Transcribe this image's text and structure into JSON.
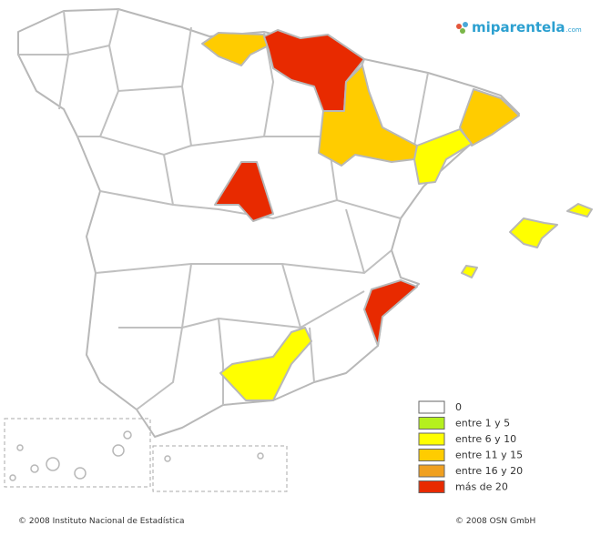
{
  "logo": {
    "name": "miparentela",
    "suffix": ".com"
  },
  "legend": {
    "items": [
      {
        "label": "0",
        "color": "#ffffff"
      },
      {
        "label": "entre 1 y 5",
        "color": "#b5f01e"
      },
      {
        "label": "entre 6 y 10",
        "color": "#ffff00"
      },
      {
        "label": "entre 11 y 15",
        "color": "#ffcc00"
      },
      {
        "label": "entre 16 y 20",
        "color": "#f0a020"
      },
      {
        "label": "más de 20",
        "color": "#e82a00"
      }
    ]
  },
  "footer": {
    "left": "© 2008 Instituto Nacional de Estadística",
    "right": "© 2008 OSN GmbH"
  }
}
